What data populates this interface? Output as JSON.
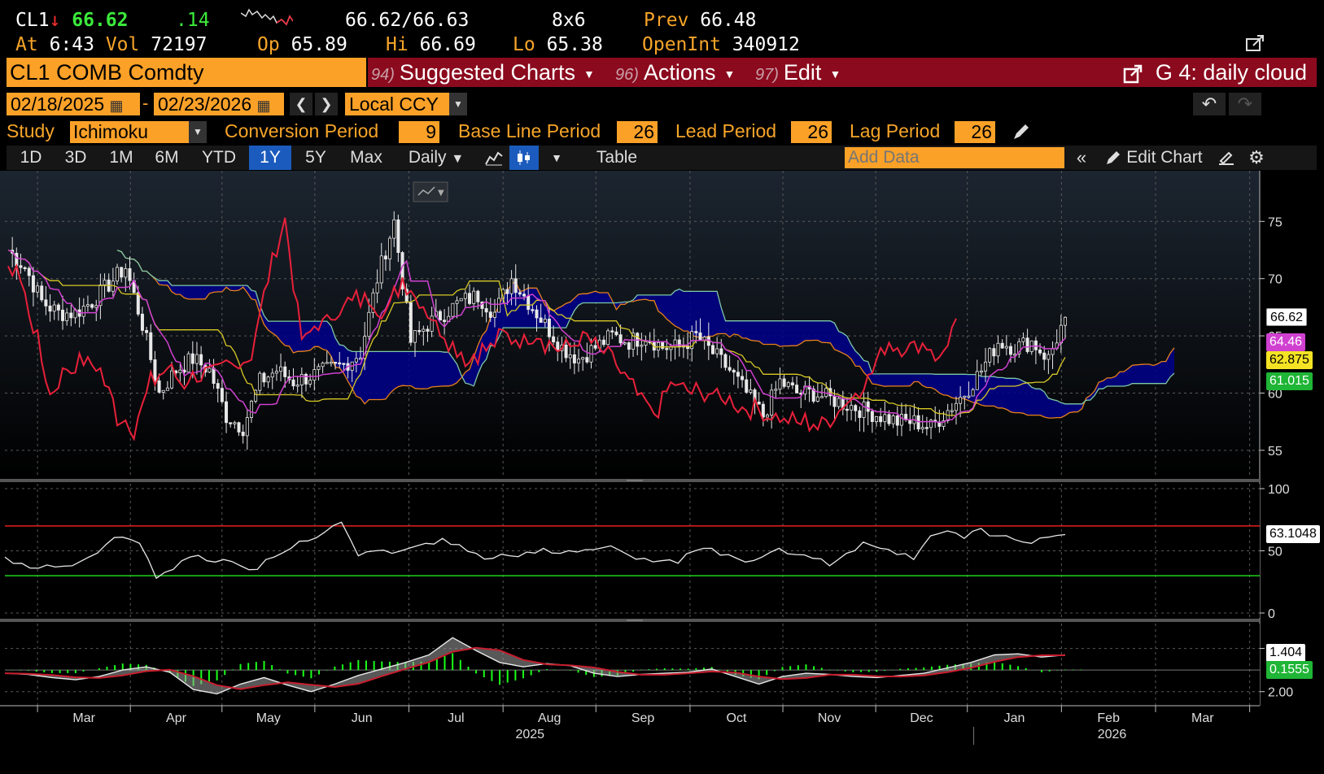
{
  "quote": {
    "symbol": "CL1",
    "arrow": "↓",
    "last": "66.62",
    "change": ".14",
    "bid_ask": "66.62/66.63",
    "size": "8x6",
    "prev_label": "Prev",
    "prev": "66.48",
    "time_label": "At",
    "time": "6:43",
    "vol_label": "Vol",
    "vol": "72197",
    "open_label": "Op",
    "open": "65.89",
    "hi_label": "Hi",
    "hi": "66.69",
    "lo_label": "Lo",
    "lo": "65.38",
    "oi_label": "OpenInt",
    "oi": "340912"
  },
  "cmdbar": {
    "ticker": "CL1 COMB Comdty",
    "suggested_num": "94)",
    "suggested": "Suggested Charts",
    "actions_num": "96)",
    "actions": "Actions",
    "edit_num": "97)",
    "edit": "Edit",
    "chart_title": "G 4: daily cloud"
  },
  "range": {
    "start": "02/18/2025",
    "end": "02/23/2026",
    "currency": "Local CCY"
  },
  "study": {
    "label": "Study",
    "name": "Ichimoku",
    "conv_label": "Conversion Period",
    "conv": "9",
    "base_label": "Base Line Period",
    "base": "26",
    "lead_label": "Lead Period",
    "lead": "26",
    "lag_label": "Lag Period",
    "lag": "26"
  },
  "toolbar": {
    "periods": [
      "1D",
      "3D",
      "1M",
      "6M",
      "YTD",
      "1Y",
      "5Y",
      "Max"
    ],
    "active_period": "1Y",
    "frequency": "Daily",
    "table": "Table",
    "add_data_placeholder": "Add Data",
    "edit_chart": "Edit Chart"
  },
  "colors": {
    "orange": "#fba128",
    "red_bar": "#8b0a1e",
    "cloud": "#00008b",
    "lagging": "#e8203a",
    "conversion": "#d040d0",
    "base": "#d8c826",
    "span_a": "#e8801a",
    "span_b": "#7ec8a8",
    "green": "#1aff1a"
  },
  "chart_data": [
    {
      "type": "candlestick",
      "study": "Ichimoku",
      "y_ticks": [
        55,
        60,
        65,
        70,
        75
      ],
      "ylim": [
        53,
        79
      ],
      "x_months": [
        "Mar",
        "Apr",
        "May",
        "Jun",
        "Jul",
        "Aug",
        "Sep",
        "Oct",
        "Nov",
        "Dec",
        "Jan",
        "Feb",
        "Mar"
      ],
      "x_years": [
        "2025",
        "2026"
      ],
      "price_close_approx": [
        72.5,
        71,
        68,
        67,
        67,
        68,
        69.5,
        71,
        66,
        60,
        62,
        63,
        62,
        58,
        57,
        61,
        62,
        61,
        61.5,
        62,
        62.5,
        63.5,
        70,
        75,
        64.5,
        66,
        67,
        68,
        68.5,
        67,
        70,
        68,
        66,
        64,
        63,
        64,
        65,
        64.5,
        65,
        64,
        64,
        65,
        63.5,
        62,
        60,
        58,
        61,
        60,
        60,
        59.5,
        59,
        58.5,
        58,
        57.5,
        57.5,
        57,
        58.5,
        60,
        62,
        64.5,
        64,
        64.5,
        63,
        66.62
      ],
      "tags": [
        {
          "label": "66.62",
          "color": "#ffffff"
        },
        {
          "label": "64.46",
          "color": "#d040d0"
        },
        {
          "label": "62.875",
          "color": "#d8c826"
        },
        {
          "label": "61.015",
          "color": "#1aff1a"
        }
      ]
    },
    {
      "type": "line",
      "name_hint": "RSI",
      "y_ticks": [
        0,
        50,
        100
      ],
      "ylim": [
        0,
        100
      ],
      "upper_band": 70,
      "lower_band": 30,
      "values": [
        45,
        40,
        36,
        37,
        38,
        45,
        55,
        61,
        56,
        28,
        35,
        45,
        42,
        43,
        38,
        35,
        45,
        52,
        58,
        65,
        73,
        46,
        50,
        48,
        52,
        56,
        60,
        55,
        48,
        44,
        46,
        49,
        52,
        48,
        49,
        51,
        54,
        47,
        44,
        42,
        40,
        50,
        52,
        47,
        41,
        45,
        52,
        47,
        44,
        38,
        48,
        57,
        52,
        47,
        43,
        62,
        66,
        60,
        68,
        62,
        59,
        56,
        61,
        63.1
      ],
      "tag": "63.1048"
    },
    {
      "type": "line",
      "name_hint": "MACD",
      "y_ticks": [
        -2.0,
        2.0
      ],
      "ylim": [
        -3,
        4
      ],
      "values": [
        -0.3,
        -0.4,
        -0.7,
        -0.9,
        -0.6,
        0,
        0.3,
        -0.2,
        -1.8,
        -2.2,
        -1.3,
        -0.7,
        -1.4,
        -2.0,
        -1.3,
        -0.5,
        0.1,
        0.7,
        1.4,
        3.0,
        1.8,
        0.7,
        0.3,
        0.6,
        0.4,
        -0.3,
        -0.6,
        -0.4,
        -0.3,
        -0.2,
        0.1,
        -0.6,
        -1.3,
        -0.6,
        -0.3,
        -0.4,
        -0.6,
        -0.7,
        -0.5,
        -0.3,
        0.2,
        0.7,
        1.4,
        1.5,
        1.2,
        1.404
      ],
      "signal_tag": "1.404",
      "hist_tag": "0.1555",
      "tick_labels": [
        "2.00",
        "-2.00"
      ]
    }
  ]
}
